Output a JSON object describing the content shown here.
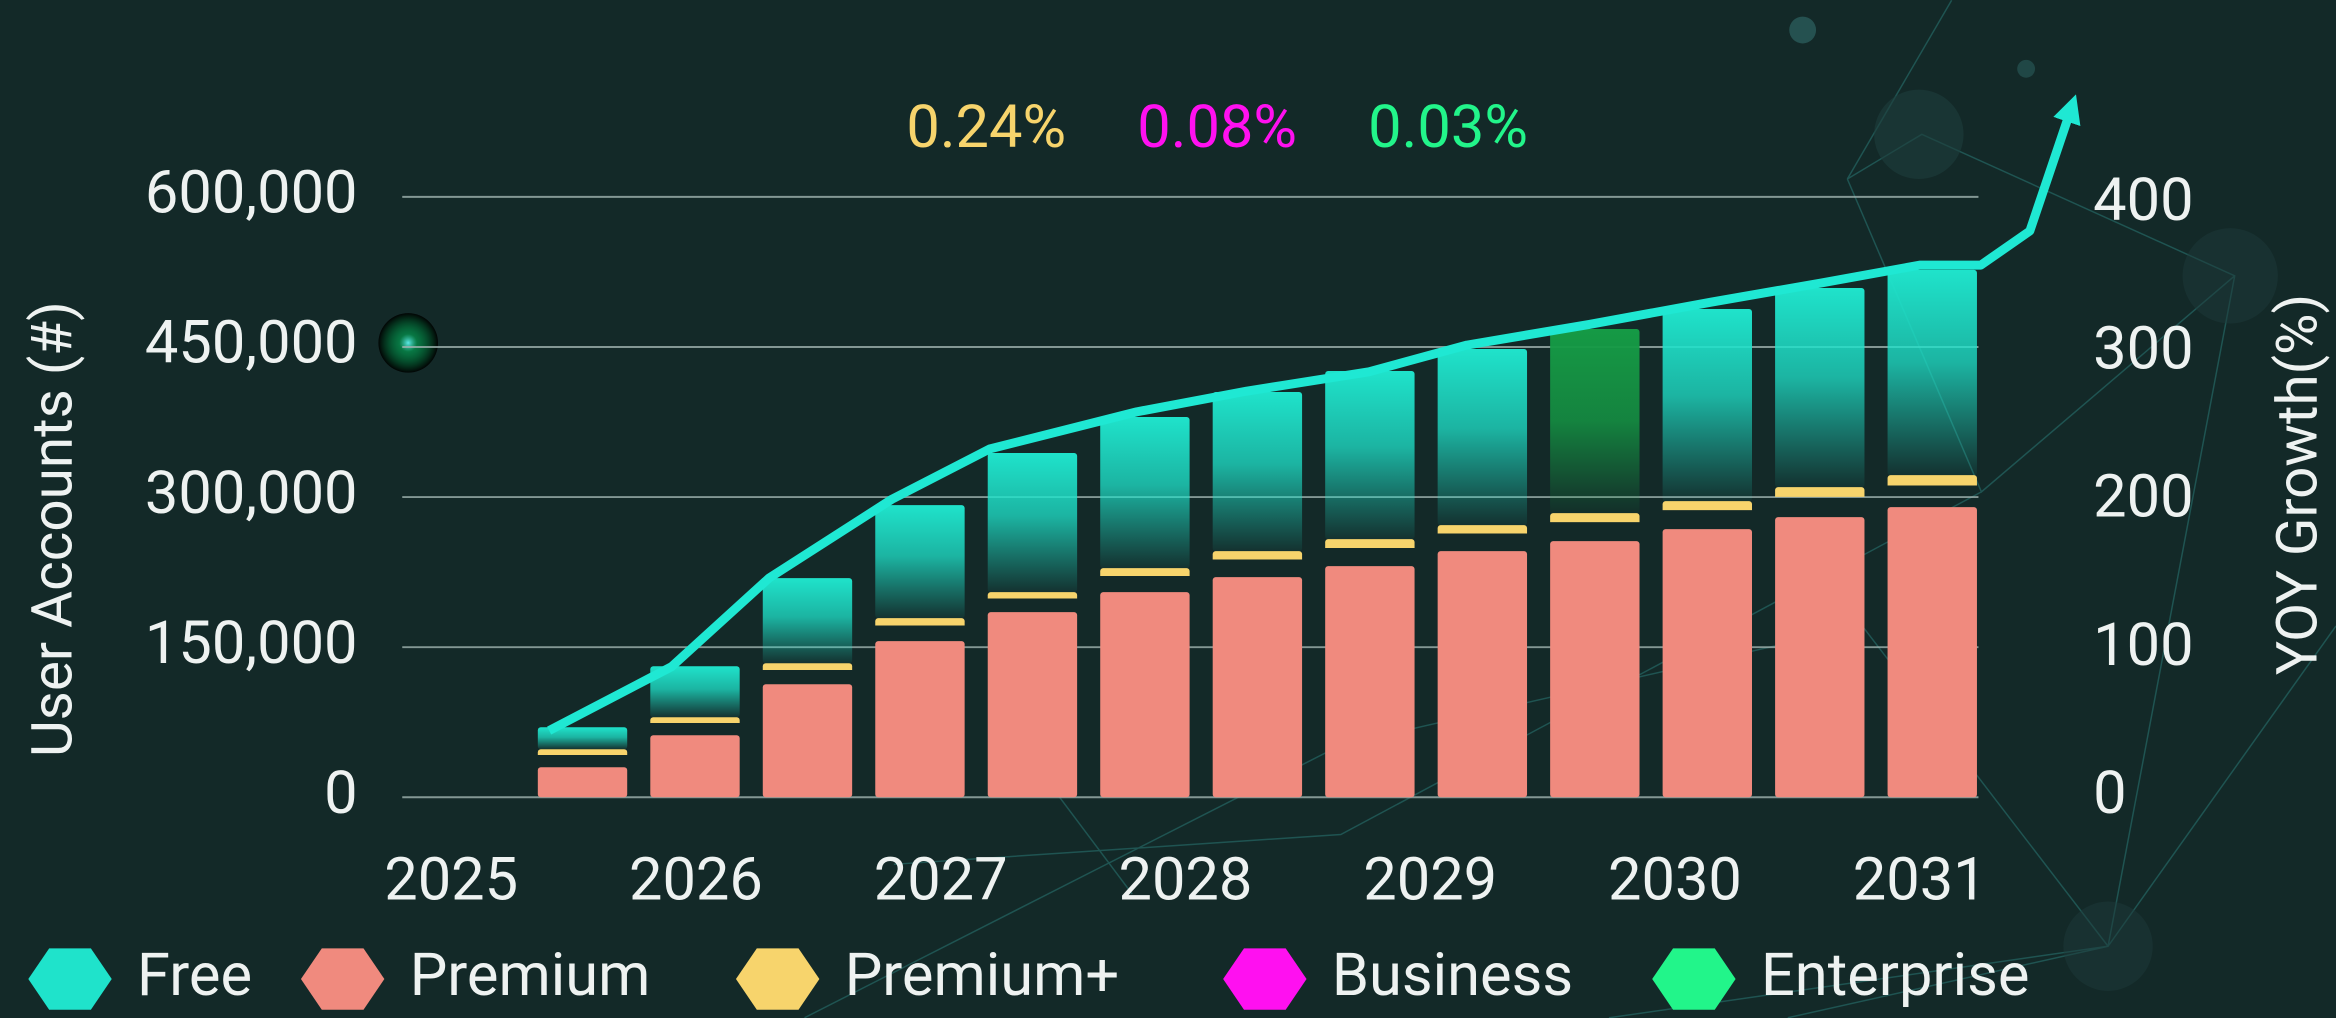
{
  "chart_data": {
    "type": "bar",
    "categories": [
      null,
      null,
      null,
      null,
      null,
      null,
      null,
      null,
      null,
      null,
      null,
      null,
      null
    ],
    "series": [
      {
        "name": "Free",
        "color": "#1fe3cb",
        "values": [
          22000,
          51000,
          85000,
          113000,
          139000,
          151000,
          159000,
          168000,
          176000,
          184000,
          192000,
          199000,
          205000
        ]
      },
      {
        "name": "Premium",
        "color": "#f08a7e",
        "values": [
          30000,
          62000,
          113000,
          156000,
          185000,
          205000,
          220000,
          231000,
          246000,
          256000,
          268000,
          280000,
          290000
        ]
      },
      {
        "name": "Premium+",
        "color": "#f7d46c",
        "values": [
          18000,
          18000,
          21000,
          23000,
          20000,
          24000,
          26000,
          27000,
          26000,
          28000,
          28000,
          30000,
          32000
        ]
      },
      {
        "name": "Business",
        "color": "#ff10f0",
        "values": [
          null,
          null,
          null,
          null,
          null,
          null,
          null,
          null,
          null,
          null,
          null,
          null,
          null
        ]
      },
      {
        "name": "Enterprise",
        "color": "#22f58a",
        "values": [
          null,
          null,
          null,
          null,
          null,
          null,
          null,
          null,
          null,
          null,
          null,
          null,
          null
        ]
      }
    ],
    "highlight": {
      "index": 9,
      "color": "#159a45"
    },
    "line": {
      "type": "line",
      "color": "#1fe8d3",
      "axis": "y2",
      "x": [
        2025.4,
        2025.9,
        2026.3,
        2026.8,
        2027.2,
        2027.8,
        2028.25,
        2028.75,
        2029.15,
        2029.65,
        2030.15,
        2030.6,
        2031,
        2031.25,
        2031.45,
        2031.62
      ],
      "values": [
        45,
        88,
        148,
        201,
        235,
        260,
        274,
        287,
        305,
        319,
        334,
        347,
        359,
        359,
        382,
        465
      ]
    },
    "ylabel": "User Accounts (#)",
    "y2label": "YOY Growth(%)",
    "ylim": [
      0,
      600000
    ],
    "yticks": [
      0,
      {
        "value": 150000,
        "label": "150,000"
      },
      {
        "value": 300000,
        "label": "300,000"
      },
      {
        "value": 450000,
        "label": "450,000"
      },
      {
        "value": 600000,
        "label": "600,000"
      }
    ],
    "y2lim": [
      0,
      405
    ],
    "y2ticks": [
      0,
      100,
      200,
      300,
      400
    ],
    "xlim": [
      2024.8,
      2031.24
    ],
    "xticks": [
      2025,
      2026,
      2027,
      2028,
      2029,
      2030,
      2031
    ],
    "grid": true,
    "annotations": [
      {
        "text": "0.24%",
        "color": "#f7d46c"
      },
      {
        "text": "0.08%",
        "color": "#ff10f0"
      },
      {
        "text": "0.03%",
        "color": "#22f58a"
      }
    ]
  }
}
